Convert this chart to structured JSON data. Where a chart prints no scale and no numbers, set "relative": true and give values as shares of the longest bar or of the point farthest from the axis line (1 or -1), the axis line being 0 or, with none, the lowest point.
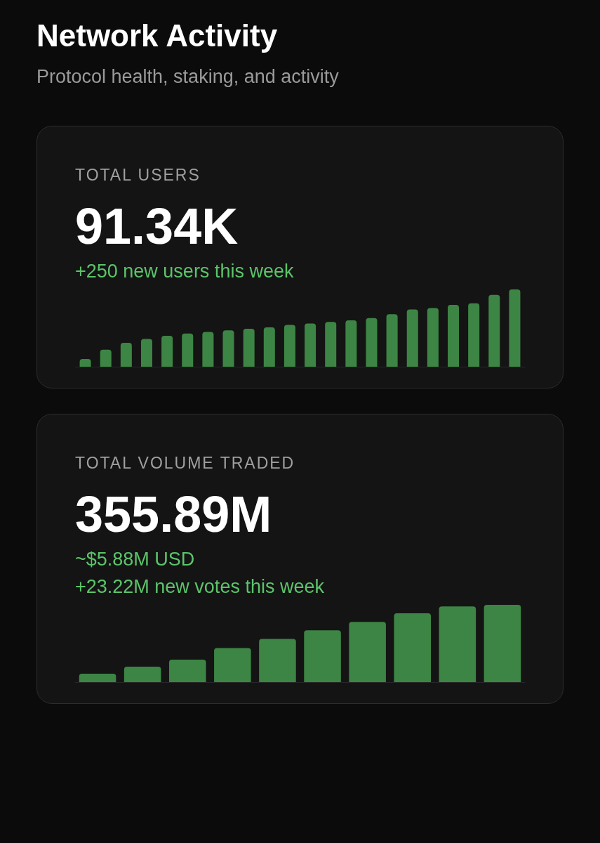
{
  "chart_data": [
    {
      "type": "other",
      "title": "Network Activity",
      "subtitle": "Protocol health, staking, and activity"
    },
    {
      "type": "bar",
      "title": "TOTAL USERS",
      "annotations": [
        "91.34K",
        "+250 new users this week"
      ],
      "relative": true,
      "color": "#3d8544",
      "categories": [
        null,
        null,
        null,
        null,
        null,
        null,
        null,
        null,
        null,
        null,
        null,
        null,
        null,
        null,
        null,
        null,
        null,
        null,
        null,
        null,
        null,
        null
      ],
      "values": [
        0.1,
        0.22,
        0.31,
        0.36,
        0.4,
        0.43,
        0.45,
        0.47,
        0.49,
        0.51,
        0.54,
        0.56,
        0.58,
        0.6,
        0.63,
        0.68,
        0.74,
        0.76,
        0.8,
        0.82,
        0.93,
        1
      ]
    },
    {
      "type": "bar",
      "title": "TOTAL VOLUME TRADED",
      "annotations": [
        "355.89M",
        "~$5.88M USD",
        "+23.22M new votes this week"
      ],
      "relative": true,
      "color": "#3d8544",
      "categories": [
        null,
        null,
        null,
        null,
        null,
        null,
        null,
        null,
        null,
        null
      ],
      "values": [
        0.11,
        0.2,
        0.29,
        0.44,
        0.56,
        0.67,
        0.78,
        0.89,
        0.98,
        1
      ]
    }
  ]
}
